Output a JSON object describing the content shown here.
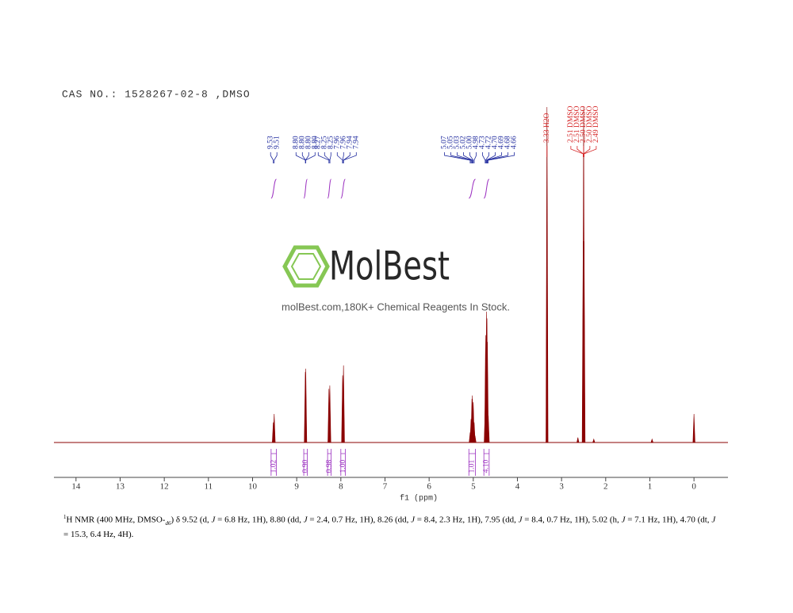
{
  "chart_data": {
    "type": "nmr",
    "title": "CAS NO.: 1528267-02-8 ,DMSO",
    "xlabel": "f1 (ppm)",
    "xlim": [
      14.5,
      -0.77
    ],
    "xticks": [
      14,
      13,
      12,
      11,
      10,
      9,
      8,
      7,
      6,
      5,
      4,
      3,
      2,
      1,
      0
    ],
    "ylim": [
      0,
      100
    ],
    "color": "#8b0000",
    "x": [
      9.53,
      9.51,
      8.805,
      8.795,
      8.27,
      8.25,
      7.96,
      7.94,
      5.07,
      5.05,
      5.03,
      5.02,
      5.0,
      4.98,
      4.96,
      4.73,
      4.72,
      4.7,
      4.69,
      4.68,
      4.66,
      3.33,
      2.63,
      2.51,
      2.5,
      2.49,
      2.27,
      0.95,
      0
    ],
    "values": [
      6,
      8.5,
      21,
      22,
      16,
      17,
      20,
      23,
      3,
      7,
      13,
      14,
      12,
      6,
      2,
      10,
      32,
      39,
      37,
      30,
      8,
      100,
      1.5,
      60,
      100,
      60,
      1,
      1,
      8.5
    ],
    "peak_label_color": "#1f2a9e",
    "peak_labels": [
      {
        "value": 9.53,
        "label": "9.53"
      },
      {
        "value": 9.51,
        "label": "9.51"
      },
      {
        "value": 8.8,
        "label": "8.80"
      },
      {
        "value": 8.8,
        "label": "8.80"
      },
      {
        "value": 8.8,
        "label": "8.80"
      },
      {
        "value": 8.8,
        "label": "8.80"
      },
      {
        "value": 8.27,
        "label": "8.27"
      },
      {
        "value": 8.25,
        "label": "8.25"
      },
      {
        "value": 8.25,
        "label": "8.25"
      },
      {
        "value": 7.96,
        "label": "7.96"
      },
      {
        "value": 7.96,
        "label": "7.96"
      },
      {
        "value": 7.94,
        "label": "7.94"
      },
      {
        "value": 7.94,
        "label": "7.94"
      },
      {
        "value": 5.07,
        "label": "5.07"
      },
      {
        "value": 5.05,
        "label": "5.05"
      },
      {
        "value": 5.03,
        "label": "5.03"
      },
      {
        "value": 5.02,
        "label": "5.02"
      },
      {
        "value": 5.0,
        "label": "5.00"
      },
      {
        "value": 4.98,
        "label": "4.98"
      },
      {
        "value": 4.73,
        "label": "4.73"
      },
      {
        "value": 4.72,
        "label": "4.72"
      },
      {
        "value": 4.7,
        "label": "4.70"
      },
      {
        "value": 4.69,
        "label": "4.69"
      },
      {
        "value": 4.68,
        "label": "4.68"
      },
      {
        "value": 4.66,
        "label": "4.66"
      }
    ],
    "solvent_label_color": "#d62728",
    "solvent_labels": [
      {
        "value": 3.33,
        "label": "3.33 H2O"
      },
      {
        "value": 2.51,
        "label": "2.51 DMSO"
      },
      {
        "value": 2.51,
        "label": "2.51 DMSO"
      },
      {
        "value": 2.5,
        "label": "2.50 DMSO"
      },
      {
        "value": 2.5,
        "label": "2.50 DMSO"
      },
      {
        "value": 2.49,
        "label": "2.49 DMSO"
      }
    ],
    "integral_color": "#9b30c0",
    "integrals": {
      "ranges": [
        [
          9.58,
          9.46
        ],
        [
          8.84,
          8.76
        ],
        [
          8.3,
          8.22
        ],
        [
          8.0,
          7.9
        ],
        [
          5.1,
          4.95
        ],
        [
          4.76,
          4.64
        ]
      ],
      "values": [
        1.02,
        0.9,
        0.98,
        1.0,
        1.01,
        4.1
      ],
      "value_labels": [
        "1.02",
        "0.90",
        "0.98",
        "1.00",
        "1.01",
        "4.10"
      ]
    }
  },
  "watermark": {
    "brand": "MolBest",
    "tagline": "molBest.com,180K+ Chemical Reagents In Stock."
  },
  "footer": [
    "1",
    "H NMR (400 MHz, DMSO-",
    "d",
    "6",
    ") δ 9.52 (d, ",
    "J",
    " = 6.8 Hz, 1H), 8.80 (dd, ",
    "J",
    " = 2.4, 0.7 Hz, 1H), 8.26 (dd, ",
    "J",
    " = 8.4, 2.3 Hz, 1H), 7.95 (dd, ",
    "J",
    " = 8.4, 0.7 Hz, 1H), 5.02 (h, ",
    "J",
    " = 7.1 Hz, 1H), 4.70 (dt, ",
    "J",
    " = 15.3, 6.4 Hz, 4H)."
  ]
}
